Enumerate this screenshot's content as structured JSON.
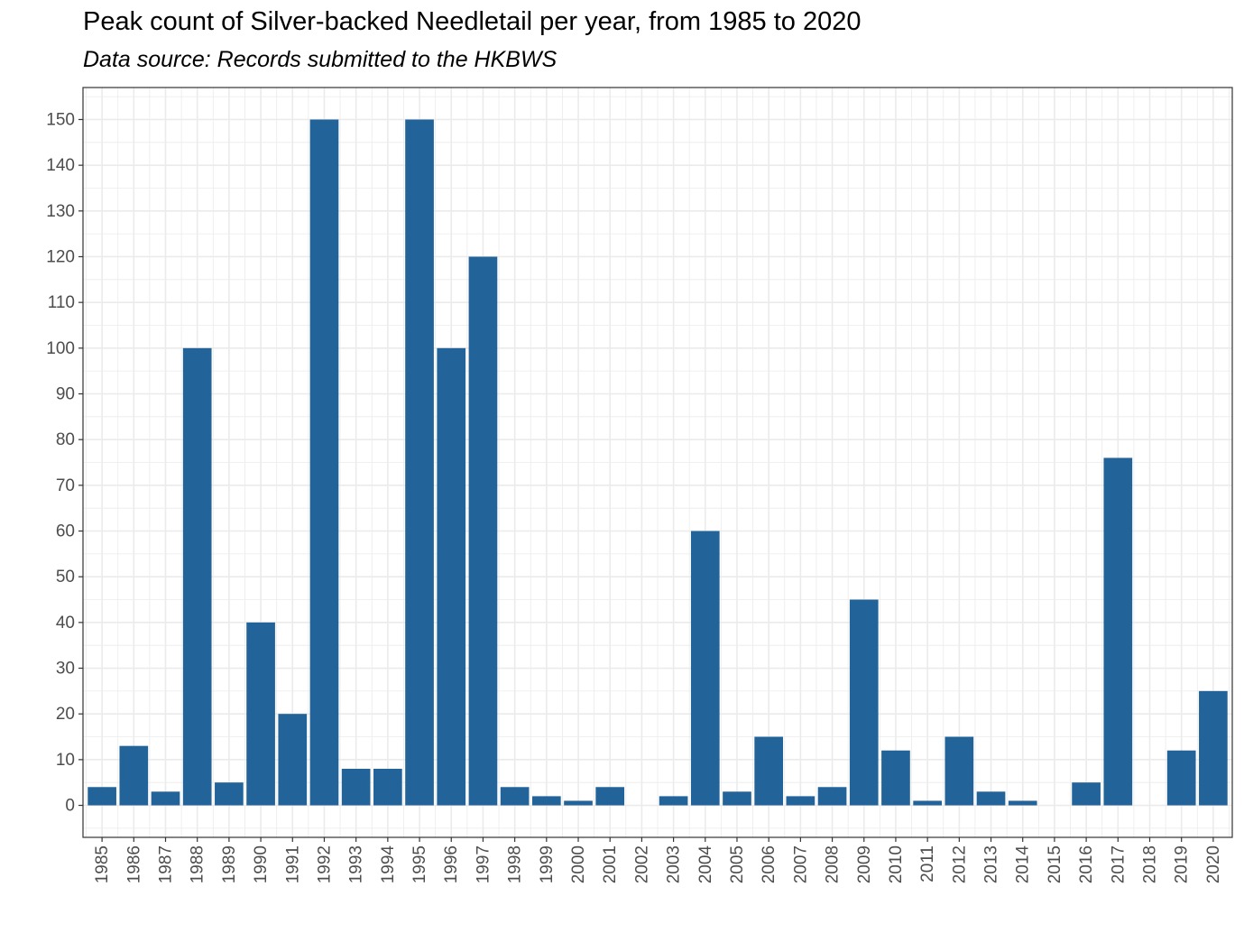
{
  "chart_data": {
    "type": "bar",
    "title": "Peak count of Silver-backed Needletail per year, from 1985 to 2020",
    "subtitle": "Data source: Records submitted to the HKBWS",
    "xlabel": "",
    "ylabel": "",
    "categories": [
      "1985",
      "1986",
      "1987",
      "1988",
      "1989",
      "1990",
      "1991",
      "1992",
      "1993",
      "1994",
      "1995",
      "1996",
      "1997",
      "1998",
      "1999",
      "2000",
      "2001",
      "2002",
      "2003",
      "2004",
      "2005",
      "2006",
      "2007",
      "2008",
      "2009",
      "2010",
      "2011",
      "2012",
      "2013",
      "2014",
      "2015",
      "2016",
      "2017",
      "2018",
      "2019",
      "2020"
    ],
    "values": [
      4,
      13,
      3,
      100,
      5,
      40,
      20,
      150,
      8,
      8,
      150,
      100,
      120,
      4,
      2,
      1,
      4,
      0,
      2,
      60,
      3,
      15,
      2,
      4,
      45,
      12,
      1,
      15,
      3,
      1,
      0,
      5,
      76,
      0,
      12,
      25
    ],
    "ylim": [
      -7,
      157
    ],
    "yticks": [
      0,
      10,
      20,
      30,
      40,
      50,
      60,
      70,
      80,
      90,
      100,
      110,
      120,
      130,
      140,
      150
    ],
    "grid": true,
    "legend": "none",
    "bar_color": "#22639a",
    "grid_color": "#ebebeb",
    "axis_text_color": "#4d4d4d"
  }
}
